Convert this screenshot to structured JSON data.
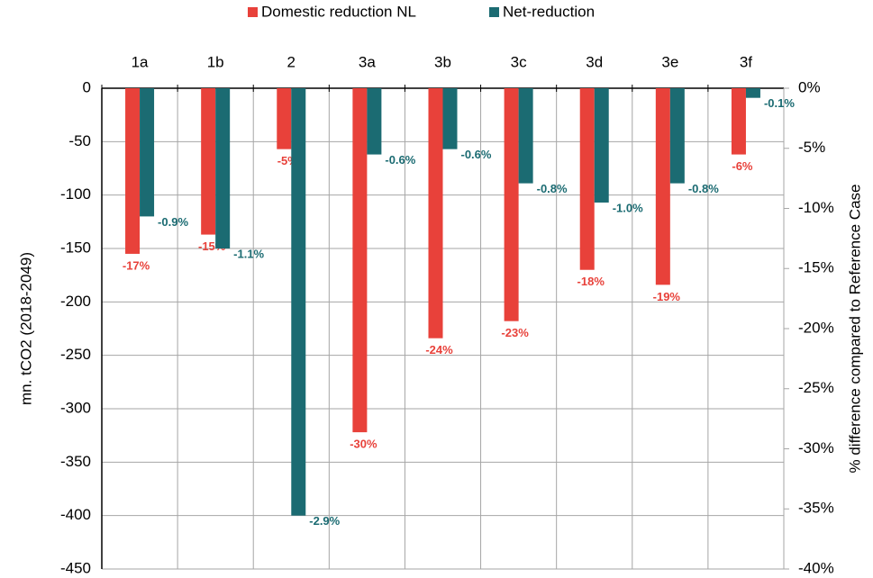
{
  "chart_data": {
    "type": "bar",
    "categories": [
      "1a",
      "1b",
      "2",
      "3a",
      "3b",
      "3c",
      "3d",
      "3e",
      "3f"
    ],
    "series": [
      {
        "name": "Domestic reduction NL",
        "color": "#e8413a",
        "values": [
          -155,
          -137,
          -57,
          -322,
          -234,
          -218,
          -170,
          -184,
          -62
        ],
        "percent_labels": [
          "-17%",
          "-15%",
          "-5%",
          "-30%",
          "-24%",
          "-23%",
          "-18%",
          "-19%",
          "-6%"
        ]
      },
      {
        "name": "Net-reduction",
        "color": "#1b6b72",
        "values": [
          -120,
          -150,
          -400,
          -62,
          -57,
          -89,
          -107,
          -89,
          -9
        ],
        "percent_labels": [
          "-0.9%",
          "-1.1%",
          "-2.9%",
          "-0.6%",
          "-0.6%",
          "-0.8%",
          "-1.0%",
          "-0.8%",
          "-0.1%"
        ]
      }
    ],
    "ylabel": "mn. tCO2 (2018-2049)",
    "y2label": "% difference compared to Reference Case",
    "ylim": [
      -450,
      0
    ],
    "yticks": [
      0,
      -50,
      -100,
      -150,
      -200,
      -250,
      -300,
      -350,
      -400,
      -450
    ],
    "y2lim": [
      -40,
      0
    ],
    "y2ticks": [
      {
        "value": 0,
        "label": "0%"
      },
      {
        "value": -5,
        "label": "-5%"
      },
      {
        "value": -10,
        "label": "-10%"
      },
      {
        "value": -15,
        "label": "-15%"
      },
      {
        "value": -20,
        "label": "-20%"
      },
      {
        "value": -25,
        "label": "-25%"
      },
      {
        "value": -30,
        "label": "-30%"
      },
      {
        "value": -35,
        "label": "-35%"
      },
      {
        "value": -40,
        "label": "-40%"
      }
    ],
    "grid": true,
    "legend": "top"
  }
}
